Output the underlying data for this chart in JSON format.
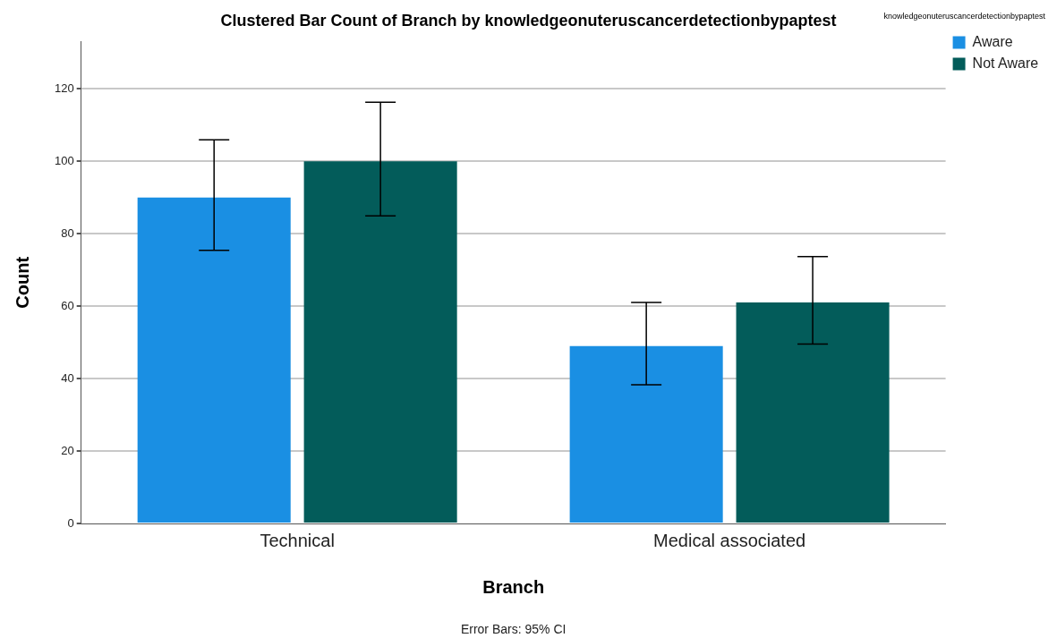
{
  "chart_data": {
    "type": "bar",
    "title": "Clustered Bar Count of Branch by knowledgeonuteruscancerdetectionbypaptest",
    "xlabel": "Branch",
    "ylabel": "Count",
    "legend_title": "knowledgeonuteruscancerdetectionbypaptest",
    "categories": [
      "Technical",
      "Medical associated"
    ],
    "series": [
      {
        "name": "Aware",
        "color": "#1a8fe3",
        "values": [
          90,
          49
        ],
        "errors": [
          [
            75.4,
            105.9
          ],
          [
            38.3,
            61
          ]
        ]
      },
      {
        "name": "Not Aware",
        "color": "#035c5a",
        "values": [
          100,
          61
        ],
        "errors": [
          [
            84.9,
            116.3
          ],
          [
            49.5,
            73.7
          ]
        ]
      }
    ],
    "ylim": [
      0,
      133
    ],
    "yticks": [
      0,
      20,
      40,
      60,
      80,
      100,
      120
    ],
    "grid": "y",
    "legend": "top right",
    "annotations": [
      "Error Bars: 95% CI"
    ]
  }
}
